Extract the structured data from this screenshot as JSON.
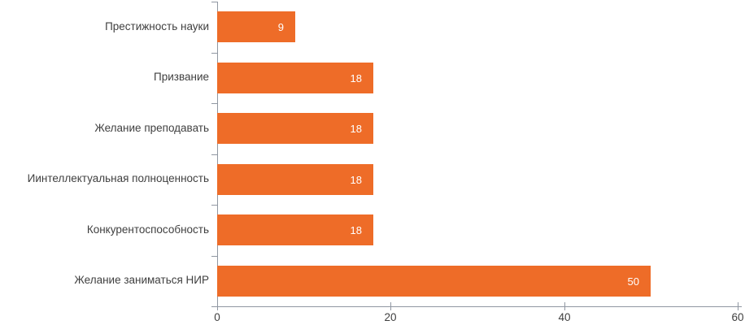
{
  "chart_data": {
    "type": "bar",
    "orientation": "horizontal",
    "title": "",
    "xlabel": "",
    "ylabel": "",
    "categories": [
      "Престижность науки",
      "Призвание",
      "Желание преподавать",
      "Иинтеллектуальная полноценность",
      "Конкурентоспособность",
      "Желание заниматься НИР"
    ],
    "values": [
      9,
      18,
      18,
      18,
      18,
      50
    ],
    "value_labels": [
      "9",
      "18",
      "18",
      "18",
      "18",
      "50"
    ],
    "x_ticks": [
      "0",
      "20",
      "40",
      "60"
    ],
    "x_tick_values": [
      0,
      20,
      40,
      60
    ],
    "xlim": [
      0,
      60
    ],
    "grid": false,
    "legend": false,
    "colors": {
      "bar": "#ee6c28",
      "category_label": "#3f3f3f",
      "tick_label": "#3f3f3f",
      "axis": "#9097a2",
      "value_label": "#ffffff",
      "background": "#ffffff"
    }
  }
}
